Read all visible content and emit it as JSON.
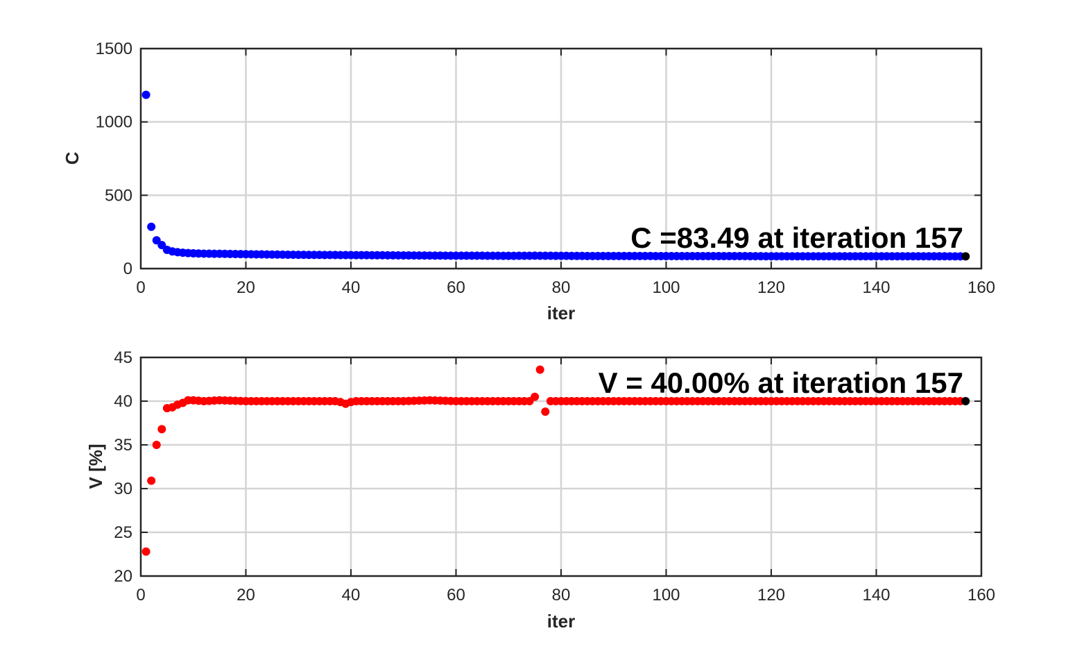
{
  "chart_data": [
    {
      "type": "scatter",
      "xlabel": "iter",
      "ylabel": "C",
      "xlim": [
        0,
        160
      ],
      "ylim": [
        0,
        1500
      ],
      "xticks": [
        "0",
        "20",
        "40",
        "60",
        "80",
        "100",
        "120",
        "140",
        "160"
      ],
      "yticks": [
        "0",
        "500",
        "1000",
        "1500"
      ],
      "grid": true,
      "annotation": "C =83.49 at iteration 157",
      "series": [
        {
          "color": "#0000ff",
          "x": [
            1,
            2,
            3,
            4,
            5,
            6,
            7,
            8,
            9,
            10,
            12,
            15,
            20,
            25,
            30,
            35,
            40,
            45,
            50,
            55,
            60,
            65,
            70,
            75,
            80,
            85,
            90,
            95,
            100,
            105,
            110,
            115,
            120,
            125,
            130,
            135,
            140,
            145,
            150,
            156
          ],
          "y": [
            1185,
            285,
            193,
            160,
            128,
            117,
            112,
            108,
            106,
            104,
            102,
            101,
            98,
            96,
            94,
            93,
            92,
            91,
            90,
            89,
            88,
            88,
            87,
            88,
            87,
            86,
            86,
            86,
            85,
            85,
            85,
            85,
            84,
            84,
            84,
            84,
            84,
            84,
            84,
            83.5
          ]
        },
        {
          "color": "#000000",
          "x": [
            157
          ],
          "y": [
            83.49
          ]
        }
      ]
    },
    {
      "type": "scatter",
      "xlabel": "iter",
      "ylabel": "V [%]",
      "xlim": [
        0,
        160
      ],
      "ylim": [
        20,
        45
      ],
      "xticks": [
        "0",
        "20",
        "40",
        "60",
        "80",
        "100",
        "120",
        "140",
        "160"
      ],
      "yticks": [
        "20",
        "25",
        "30",
        "35",
        "40",
        "45"
      ],
      "grid": true,
      "annotation": "V = 40.00% at iteration 157",
      "series": [
        {
          "color": "#ff0000",
          "x": [
            1,
            2,
            3,
            4,
            5,
            6,
            7,
            8,
            9,
            10,
            12,
            15,
            20,
            25,
            30,
            35,
            37,
            38,
            39,
            40,
            41,
            45,
            50,
            55,
            60,
            65,
            70,
            74,
            75,
            76,
            77,
            78,
            80,
            85,
            90,
            95,
            100,
            105,
            110,
            115,
            120,
            125,
            130,
            135,
            140,
            145,
            150,
            156
          ],
          "y": [
            22.8,
            30.9,
            35.0,
            36.8,
            39.2,
            39.3,
            39.6,
            39.8,
            40.1,
            40.1,
            40.0,
            40.1,
            40.0,
            40.0,
            40.0,
            40.0,
            40.0,
            39.9,
            39.7,
            39.9,
            40.0,
            40.0,
            40.0,
            40.1,
            40.0,
            40.0,
            40.0,
            40.0,
            40.5,
            43.6,
            38.8,
            40.0,
            40.0,
            40.0,
            40.0,
            40.0,
            40.0,
            40.0,
            40.0,
            40.0,
            40.0,
            40.0,
            40.0,
            40.0,
            40.0,
            40.0,
            40.0,
            40.0
          ]
        },
        {
          "color": "#000000",
          "x": [
            157
          ],
          "y": [
            40.0
          ]
        }
      ]
    }
  ]
}
